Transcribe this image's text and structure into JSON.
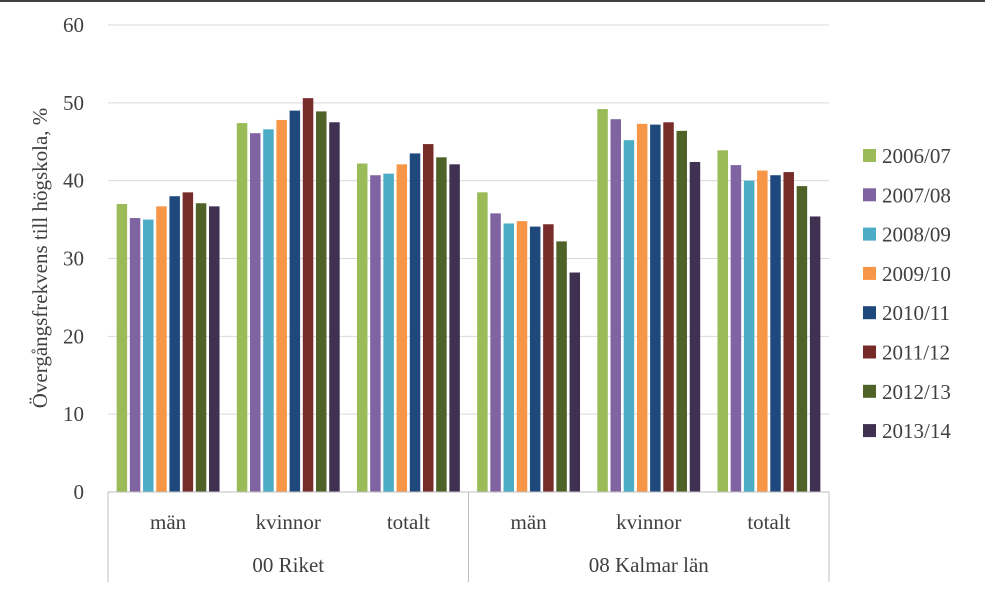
{
  "chart_data": {
    "type": "bar",
    "ylabel": "Övergångsfrekvens till högskola, %",
    "xlabel": "",
    "ylim": [
      0,
      60
    ],
    "yticks": [
      0,
      10,
      20,
      30,
      40,
      50,
      60
    ],
    "grid": true,
    "legend_position": "right",
    "groups": [
      {
        "label": "00 Riket",
        "categories": [
          "män",
          "kvinnor",
          "totalt"
        ]
      },
      {
        "label": "08 Kalmar län",
        "categories": [
          "män",
          "kvinnor",
          "totalt"
        ]
      }
    ],
    "categories": [
      "män",
      "kvinnor",
      "totalt",
      "män",
      "kvinnor",
      "totalt"
    ],
    "series": [
      {
        "name": "2006/07",
        "color": "#9BBB59",
        "values": [
          37.0,
          47.4,
          42.2,
          38.5,
          49.2,
          43.9
        ]
      },
      {
        "name": "2007/08",
        "color": "#8064A2",
        "values": [
          35.2,
          46.1,
          40.7,
          35.8,
          47.9,
          42.0
        ]
      },
      {
        "name": "2008/09",
        "color": "#4BACC6",
        "values": [
          35.0,
          46.6,
          40.9,
          34.5,
          45.2,
          40.0
        ]
      },
      {
        "name": "2009/10",
        "color": "#F79646",
        "values": [
          36.7,
          47.8,
          42.1,
          34.8,
          47.3,
          41.3
        ]
      },
      {
        "name": "2010/11",
        "color": "#1F497D",
        "values": [
          38.0,
          49.0,
          43.5,
          34.1,
          47.2,
          40.7
        ]
      },
      {
        "name": "2011/12",
        "color": "#772C2A",
        "values": [
          38.5,
          50.6,
          44.7,
          34.4,
          47.5,
          41.1
        ]
      },
      {
        "name": "2012/13",
        "color": "#4F6228",
        "values": [
          37.1,
          48.9,
          43.0,
          32.2,
          46.4,
          39.3
        ]
      },
      {
        "name": "2013/14",
        "color": "#403152",
        "values": [
          36.7,
          47.5,
          42.1,
          28.2,
          42.4,
          35.4
        ]
      }
    ]
  }
}
